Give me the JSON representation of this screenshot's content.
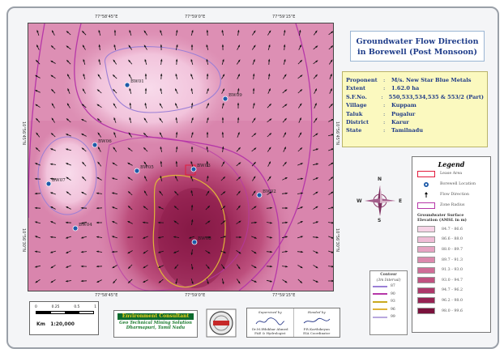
{
  "title": {
    "line1": "Groundwater Flow Direction",
    "line2": "in Borewell (Post Monsoon)"
  },
  "coordinates": {
    "top": [
      "77°58'45\"E",
      "77°59'0\"E",
      "77°59'15\"E"
    ],
    "bottom": [
      "77°58'45\"E",
      "77°59'0\"E",
      "77°59'15\"E"
    ],
    "left": [
      "10°56'45\"N",
      "10°56'30\"N"
    ],
    "right": [
      "10°56'45\"N",
      "10°56'30\"N"
    ]
  },
  "info": [
    {
      "key": "Proponent",
      "value": "M/s. New Star Blue Metals"
    },
    {
      "key": "Extent",
      "value": "1.62.0 ha"
    },
    {
      "key": "S.F.No.",
      "value": "550,533,534,535 & 553/2 (Part)"
    },
    {
      "key": "Village",
      "value": "Kuppam"
    },
    {
      "key": "Taluk",
      "value": "Pugalur"
    },
    {
      "key": "District",
      "value": "Karur"
    },
    {
      "key": "State",
      "value": "Tamilnadu"
    }
  ],
  "legend": {
    "title": "Legend",
    "items": [
      "Lease Area",
      "Borewell Location",
      "Flow Direction",
      "Zone Radius"
    ],
    "ramp_title": "Groundwater Surface Elevation (AMSL in m)",
    "classes": [
      {
        "label": "84.7 - 86.6",
        "color": "#f6d3e6"
      },
      {
        "label": "86.6 - 88.0",
        "color": "#efbcd6"
      },
      {
        "label": "88.0 - 89.7",
        "color": "#e6a4c3"
      },
      {
        "label": "89.7 - 91.3",
        "color": "#db89ad"
      },
      {
        "label": "91.3 - 93.0",
        "color": "#cf6d97"
      },
      {
        "label": "93.0 - 94.7",
        "color": "#c05280"
      },
      {
        "label": "94.7 - 96.2",
        "color": "#ad386a"
      },
      {
        "label": "96.2 - 98.0",
        "color": "#962353"
      },
      {
        "label": "98.0 - 99.6",
        "color": "#7a123c"
      }
    ]
  },
  "compass": {
    "n": "N",
    "s": "S",
    "e": "E",
    "w": "W"
  },
  "contour": {
    "title": "Contour",
    "subtitle": "(3m Interval)",
    "lines": [
      {
        "label": "87",
        "color": "#9b7fd6"
      },
      {
        "label": "90",
        "color": "#b637a8"
      },
      {
        "label": "93",
        "color": "#c9a91f"
      },
      {
        "label": "96",
        "color": "#e0b43a"
      },
      {
        "label": "99",
        "color": "#b9a8de"
      }
    ]
  },
  "scale": {
    "ticks": [
      "0",
      "0.25",
      "0.5",
      "1"
    ],
    "unit_ratio": "1:20,000",
    "unit_label": "Km"
  },
  "consultant": {
    "name": "Environment Consultant",
    "line1": "Geo Technical Mining Solution",
    "line2": "Dharmapuri, Tamil Nadu"
  },
  "signatures": {
    "left": {
      "label": "Supervised by",
      "name": "Dr.M.Ifthikhar Ahmed",
      "role": "FAE & Hydrologist"
    },
    "right": {
      "label": "Headed by",
      "name": "P.R.Karthikeyan",
      "role": "EIA Coordinator"
    }
  },
  "wells": [
    {
      "id": "BW01"
    },
    {
      "id": "BW06"
    },
    {
      "id": "BW05"
    },
    {
      "id": "BW03"
    },
    {
      "id": "BW07"
    },
    {
      "id": "BW02"
    },
    {
      "id": "BW04"
    },
    {
      "id": "BW08"
    },
    {
      "id": "BW09"
    }
  ],
  "colors": {
    "lease_area": "#e21b3c",
    "contour_outer": "#b637a8",
    "contour_mid": "#d9a032",
    "well_marker": "#1d5aa8"
  }
}
